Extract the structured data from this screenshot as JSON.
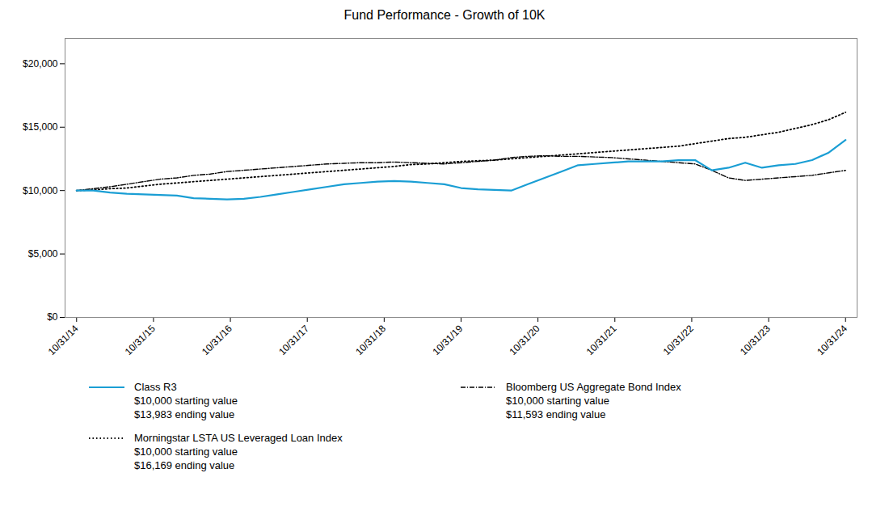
{
  "chart_data": {
    "type": "line",
    "title": "Fund Performance - Growth of 10K",
    "x": [
      0,
      0.2173913043,
      0.4347826087,
      0.652173913,
      0.8695652174,
      1.0869565217,
      1.3043478261,
      1.5217391304,
      1.7391304348,
      1.9565217391,
      2.1739130435,
      2.3913043478,
      2.6086956522,
      2.8260869565,
      3.0434782609,
      3.2608695652,
      3.4782608696,
      3.6956521739,
      3.9130434783,
      4.1304347826,
      4.347826087,
      4.5652173913,
      4.7826086957,
      5,
      5.2173913043,
      5.4347826087,
      5.652173913,
      5.8695652174,
      6.0869565217,
      6.3043478261,
      6.5217391304,
      6.7391304348,
      6.9565217391,
      7.1739130435,
      7.3913043478,
      7.6086956522,
      7.8260869565,
      8.0434782609,
      8.2608695652,
      8.4782608696,
      8.6956521739,
      8.9130434783,
      9.1304347826,
      9.347826087,
      9.5652173913,
      9.7826086957,
      10
    ],
    "xlim": [
      -0.15,
      10.15
    ],
    "xticks": [
      {
        "value": 0,
        "label": "10/31/14"
      },
      {
        "value": 1,
        "label": "10/31/15"
      },
      {
        "value": 2,
        "label": "10/31/16"
      },
      {
        "value": 3,
        "label": "10/31/17"
      },
      {
        "value": 4,
        "label": "10/31/18"
      },
      {
        "value": 5,
        "label": "10/31/19"
      },
      {
        "value": 6,
        "label": "10/31/20"
      },
      {
        "value": 7,
        "label": "10/31/21"
      },
      {
        "value": 8,
        "label": "10/31/22"
      },
      {
        "value": 9,
        "label": "10/31/23"
      },
      {
        "value": 10,
        "label": "10/31/24"
      }
    ],
    "ylim": [
      0,
      22000
    ],
    "yticks": [
      {
        "value": 0,
        "label": "$0"
      },
      {
        "value": 5000,
        "label": "$5,000"
      },
      {
        "value": 10000,
        "label": "$10,000"
      },
      {
        "value": 15000,
        "label": "$15,000"
      },
      {
        "value": 20000,
        "label": "$20,000"
      }
    ],
    "grid": false,
    "series": [
      {
        "name": "Class R3",
        "color": "#1a9ed4",
        "line_style": "solid",
        "annotations": [
          "$10,000 starting value",
          "$13,983 ending value"
        ],
        "values": [
          10000,
          10000,
          9850,
          9750,
          9700,
          9650,
          9600,
          9400,
          9350,
          9300,
          9350,
          9500,
          9700,
          9900,
          10100,
          10300,
          10500,
          10600,
          10700,
          10750,
          10700,
          10600,
          10500,
          10200,
          10100,
          10050,
          10000,
          10500,
          11000,
          11500,
          12000,
          12100,
          12200,
          12300,
          12300,
          12300,
          12400,
          12400,
          11600,
          11800,
          12200,
          11800,
          12000,
          12100,
          12400,
          13000,
          13983
        ]
      },
      {
        "name": "Morningstar LSTA US Leveraged Loan Index",
        "color": "#000000",
        "line_style": "dotted",
        "annotations": [
          "$10,000 starting value",
          "$16,169 ending value"
        ],
        "values": [
          10000,
          10050,
          10150,
          10200,
          10350,
          10500,
          10600,
          10700,
          10800,
          10900,
          11000,
          11100,
          11200,
          11300,
          11400,
          11500,
          11600,
          11700,
          11800,
          11900,
          12050,
          12100,
          12200,
          12300,
          12350,
          12400,
          12500,
          12600,
          12700,
          12800,
          12900,
          13000,
          13100,
          13200,
          13300,
          13400,
          13500,
          13700,
          13900,
          14100,
          14200,
          14400,
          14600,
          14900,
          15200,
          15600,
          16169
        ]
      },
      {
        "name": "Bloomberg US Aggregate Bond Index",
        "color": "#000000",
        "line_style": "dashdot",
        "annotations": [
          "$10,000 starting value",
          "$11,593 ending value"
        ],
        "values": [
          10000,
          10150,
          10300,
          10500,
          10700,
          10900,
          11000,
          11200,
          11300,
          11500,
          11600,
          11700,
          11800,
          11900,
          12000,
          12100,
          12150,
          12200,
          12200,
          12250,
          12200,
          12150,
          12100,
          12200,
          12300,
          12400,
          12600,
          12700,
          12750,
          12700,
          12700,
          12650,
          12600,
          12500,
          12400,
          12300,
          12200,
          12100,
          11600,
          11000,
          10800,
          10900,
          11000,
          11100,
          11200,
          11400,
          11593
        ]
      }
    ]
  }
}
